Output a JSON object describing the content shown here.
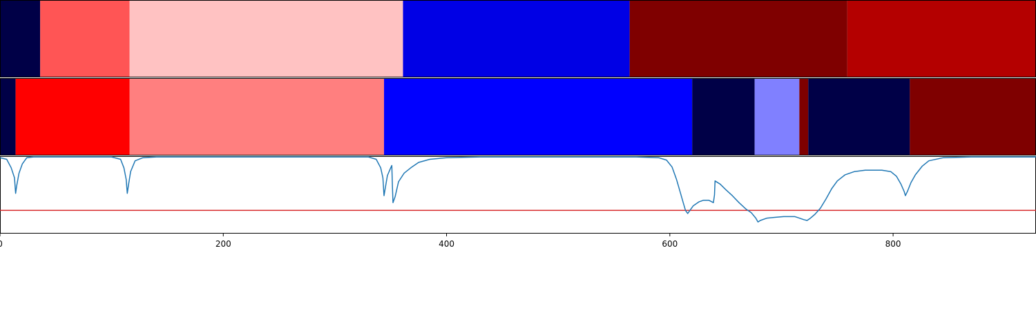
{
  "chart_data": {
    "type": "segmentation-plot",
    "xlim": [
      0,
      928
    ],
    "x_ticks": [
      0,
      200,
      400,
      600,
      800
    ],
    "tracks": [
      {
        "segments": [
          {
            "start": 0,
            "end": 36,
            "color": "#000047"
          },
          {
            "start": 36,
            "end": 116,
            "color": "#ff5555"
          },
          {
            "start": 116,
            "end": 361,
            "color": "#ffc2c2"
          },
          {
            "start": 361,
            "end": 564,
            "color": "#0000e5"
          },
          {
            "start": 564,
            "end": 759,
            "color": "#7f0000"
          },
          {
            "start": 759,
            "end": 928,
            "color": "#b40000"
          }
        ]
      },
      {
        "segments": [
          {
            "start": 0,
            "end": 14,
            "color": "#000047"
          },
          {
            "start": 14,
            "end": 116,
            "color": "#ff0000"
          },
          {
            "start": 116,
            "end": 344,
            "color": "#ff7f7f"
          },
          {
            "start": 344,
            "end": 620,
            "color": "#0000ff"
          },
          {
            "start": 620,
            "end": 676,
            "color": "#000047"
          },
          {
            "start": 676,
            "end": 716,
            "color": "#8080ff"
          },
          {
            "start": 716,
            "end": 724,
            "color": "#7f0000"
          },
          {
            "start": 724,
            "end": 815,
            "color": "#000047"
          },
          {
            "start": 815,
            "end": 928,
            "color": "#7f0000"
          }
        ]
      }
    ],
    "line": {
      "color": "#1f77b4",
      "threshold": 0.3,
      "threshold_color": "#d62728",
      "ylim": [
        0,
        1
      ],
      "points": [
        [
          0,
          0.98
        ],
        [
          6,
          0.96
        ],
        [
          10,
          0.85
        ],
        [
          13,
          0.72
        ],
        [
          14,
          0.52
        ],
        [
          15,
          0.62
        ],
        [
          17,
          0.78
        ],
        [
          20,
          0.9
        ],
        [
          24,
          0.98
        ],
        [
          30,
          0.99
        ],
        [
          100,
          0.99
        ],
        [
          108,
          0.96
        ],
        [
          111,
          0.85
        ],
        [
          113,
          0.7
        ],
        [
          114,
          0.52
        ],
        [
          115,
          0.62
        ],
        [
          117,
          0.8
        ],
        [
          121,
          0.94
        ],
        [
          128,
          0.98
        ],
        [
          140,
          0.99
        ],
        [
          330,
          0.99
        ],
        [
          337,
          0.96
        ],
        [
          341,
          0.85
        ],
        [
          343,
          0.72
        ],
        [
          344,
          0.49
        ],
        [
          345,
          0.58
        ],
        [
          347,
          0.75
        ],
        [
          350,
          0.85
        ],
        [
          351,
          0.88
        ],
        [
          351.5,
          0.6
        ],
        [
          352,
          0.4
        ],
        [
          354,
          0.48
        ],
        [
          357,
          0.67
        ],
        [
          362,
          0.78
        ],
        [
          368,
          0.85
        ],
        [
          375,
          0.92
        ],
        [
          385,
          0.96
        ],
        [
          400,
          0.98
        ],
        [
          430,
          0.99
        ],
        [
          570,
          0.99
        ],
        [
          590,
          0.98
        ],
        [
          597,
          0.95
        ],
        [
          602,
          0.86
        ],
        [
          606,
          0.7
        ],
        [
          609,
          0.55
        ],
        [
          612,
          0.4
        ],
        [
          614,
          0.3
        ],
        [
          616,
          0.26
        ],
        [
          618,
          0.3
        ],
        [
          621,
          0.36
        ],
        [
          626,
          0.41
        ],
        [
          630,
          0.43
        ],
        [
          635,
          0.43
        ],
        [
          639,
          0.4
        ],
        [
          640,
          0.5
        ],
        [
          640.5,
          0.68
        ],
        [
          645,
          0.64
        ],
        [
          650,
          0.57
        ],
        [
          656,
          0.49
        ],
        [
          662,
          0.4
        ],
        [
          668,
          0.32
        ],
        [
          673,
          0.27
        ],
        [
          677,
          0.2
        ],
        [
          679,
          0.15
        ],
        [
          681,
          0.17
        ],
        [
          687,
          0.2
        ],
        [
          694,
          0.21
        ],
        [
          702,
          0.22
        ],
        [
          712,
          0.22
        ],
        [
          716,
          0.2
        ],
        [
          720,
          0.18
        ],
        [
          723,
          0.17
        ],
        [
          726,
          0.2
        ],
        [
          730,
          0.25
        ],
        [
          735,
          0.33
        ],
        [
          740,
          0.45
        ],
        [
          745,
          0.58
        ],
        [
          750,
          0.68
        ],
        [
          757,
          0.76
        ],
        [
          765,
          0.8
        ],
        [
          775,
          0.82
        ],
        [
          790,
          0.82
        ],
        [
          798,
          0.8
        ],
        [
          803,
          0.74
        ],
        [
          807,
          0.64
        ],
        [
          810,
          0.54
        ],
        [
          811,
          0.49
        ],
        [
          813,
          0.55
        ],
        [
          816,
          0.66
        ],
        [
          820,
          0.76
        ],
        [
          826,
          0.87
        ],
        [
          832,
          0.94
        ],
        [
          845,
          0.98
        ],
        [
          870,
          0.99
        ],
        [
          928,
          0.99
        ]
      ]
    }
  }
}
